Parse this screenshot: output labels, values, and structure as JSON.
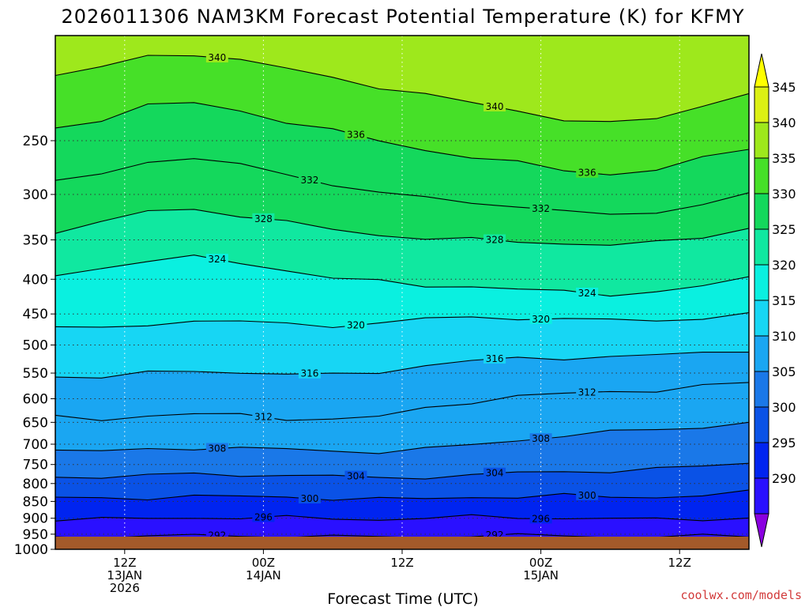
{
  "chart_data": {
    "type": "heatmap",
    "title": "2026011306 NAM3KM Forecast Potential Temperature (K) for KFMY",
    "xlabel": "Forecast Time (UTC)",
    "ylabel": "",
    "y_axis": {
      "unit": "hPa",
      "ylim": [
        1000,
        175
      ],
      "ticks": [
        250,
        300,
        350,
        400,
        450,
        500,
        550,
        600,
        650,
        700,
        750,
        800,
        850,
        900,
        950,
        1000
      ]
    },
    "x_axis": {
      "unit": "forecast hour",
      "xlim": [
        0,
        60
      ],
      "ticks": [
        {
          "hour": 6,
          "line1": "12Z",
          "line2": "13JAN",
          "line3": "2026"
        },
        {
          "hour": 18,
          "line1": "00Z",
          "line2": "14JAN",
          "line3": ""
        },
        {
          "hour": 30,
          "line1": "12Z",
          "line2": "",
          "line3": ""
        },
        {
          "hour": 42,
          "line1": "00Z",
          "line2": "15JAN",
          "line3": ""
        },
        {
          "hour": 54,
          "line1": "12Z",
          "line2": "",
          "line3": ""
        }
      ]
    },
    "colorbar": {
      "levels": [
        290,
        295,
        300,
        305,
        310,
        315,
        320,
        325,
        330,
        335,
        340,
        345
      ],
      "labels": [
        "345",
        "340",
        "335",
        "330",
        "325",
        "320",
        "315",
        "310",
        "305",
        "300",
        "295",
        "290"
      ],
      "colors": [
        "#8a00e0",
        "#2a10ff",
        "#0024f0",
        "#0a52e6",
        "#1a78e8",
        "#1aa6f2",
        "#17d6f4",
        "#0af0e0",
        "#10e8a0",
        "#14d85c",
        "#46e028",
        "#9ee81c",
        "#dcf014",
        "#ffff00"
      ]
    },
    "contour_lines": [
      {
        "value": 292,
        "label": "292",
        "pressure_profile": [
          958,
          958,
          957,
          955,
          955,
          956,
          958,
          960,
          958,
          955,
          955,
          955,
          957,
          959,
          957,
          955
        ]
      },
      {
        "value": 296,
        "label": "296",
        "pressure_profile": [
          902,
          904,
          901,
          898,
          898,
          899,
          901,
          903,
          900,
          896,
          897,
          899,
          902,
          904,
          902,
          898
        ]
      },
      {
        "value": 300,
        "label": "300",
        "pressure_profile": [
          840,
          842,
          838,
          836,
          836,
          838,
          840,
          845,
          842,
          838,
          836,
          835,
          836,
          838,
          832,
          825
        ]
      },
      {
        "value": 304,
        "label": "304",
        "pressure_profile": [
          780,
          783,
          778,
          775,
          776,
          778,
          781,
          785,
          782,
          778,
          772,
          768,
          766,
          762,
          755,
          745
        ]
      },
      {
        "value": 308,
        "label": "308",
        "pressure_profile": [
          715,
          718,
          712,
          708,
          710,
          713,
          716,
          718,
          712,
          702,
          690,
          680,
          672,
          666,
          660,
          650
        ]
      },
      {
        "value": 312,
        "label": "312",
        "pressure_profile": [
          640,
          642,
          636,
          632,
          635,
          640,
          644,
          638,
          620,
          605,
          596,
          590,
          586,
          582,
          576,
          568
        ]
      },
      {
        "value": 316,
        "label": "316",
        "pressure_profile": [
          555,
          558,
          550,
          546,
          548,
          552,
          554,
          548,
          535,
          528,
          524,
          522,
          520,
          518,
          514,
          508
        ]
      },
      {
        "value": 320,
        "label": "320",
        "pressure_profile": [
          470,
          474,
          466,
          460,
          462,
          466,
          468,
          464,
          458,
          455,
          456,
          458,
          460,
          460,
          456,
          450
        ]
      },
      {
        "value": 324,
        "label": "324",
        "pressure_profile": [
          395,
          385,
          375,
          372,
          378,
          388,
          398,
          404,
          408,
          410,
          414,
          418,
          420,
          418,
          410,
          398
        ]
      },
      {
        "value": 328,
        "label": "328",
        "pressure_profile": [
          340,
          330,
          318,
          315,
          322,
          330,
          338,
          344,
          348,
          350,
          352,
          354,
          356,
          354,
          346,
          336
        ]
      },
      {
        "value": 332,
        "label": "332",
        "pressure_profile": [
          288,
          280,
          268,
          265,
          272,
          280,
          290,
          298,
          304,
          308,
          312,
          318,
          322,
          318,
          310,
          300
        ]
      },
      {
        "value": 336,
        "label": "336",
        "pressure_profile": [
          240,
          232,
          222,
          220,
          226,
          234,
          242,
          250,
          258,
          264,
          270,
          276,
          280,
          276,
          266,
          256
        ]
      },
      {
        "value": 340,
        "label": "340",
        "pressure_profile": [
          200,
          195,
          188,
          186,
          190,
          196,
          202,
          208,
          214,
          220,
          226,
          232,
          236,
          232,
          222,
          212
        ]
      }
    ],
    "grid": true,
    "credit": "coolwx.com/models"
  }
}
